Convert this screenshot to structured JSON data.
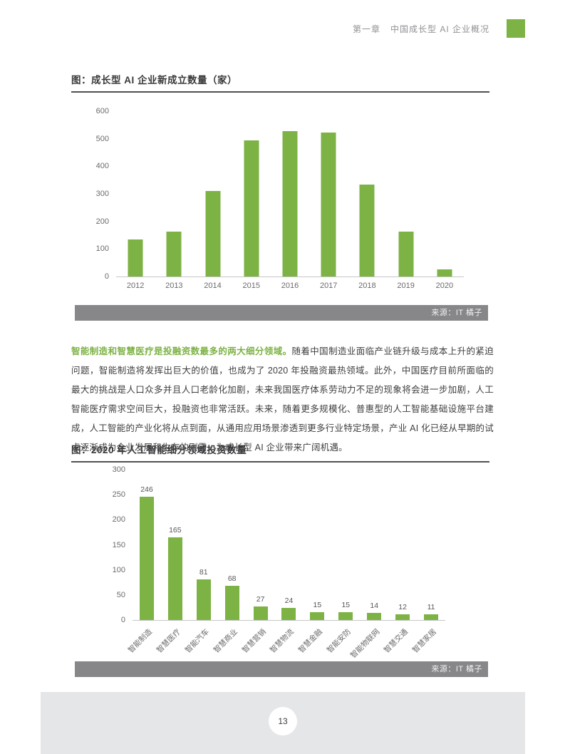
{
  "accent_color": "#7DB244",
  "header": {
    "chapter": "第一章",
    "title": "中国成长型 AI 企业概况"
  },
  "figure1": {
    "title": "图：成长型 AI 企业新成立数量（家）"
  },
  "figure2": {
    "title": "图：2020 年人工智能细分领域投资数量"
  },
  "source_bar": {
    "label": "来源：IT 橘子",
    "bg_color": "#87878A"
  },
  "paragraph": {
    "lead": "智能制造和智慧医疗是投融资数最多的两大细分领域。",
    "body": "随着中国制造业面临产业链升级与成本上升的紧迫问题，智能制造将发挥出巨大的价值，也成为了 2020 年投融资最热领域。此外，中国医疗目前所面临的最大的挑战是人口众多并且人口老龄化加剧，未来我国医疗体系劳动力不足的现象将会进一步加剧，人工智能医疗需求空间巨大，投融资也非常活跃。未来，随着更多规模化、普惠型的人工智能基础设施平台建成，人工智能的产业化将从点到面，从通用应用场景渗透到更多行业特定场景，产业 AI 化已经从早期的试点逐渐成为企业发展和生存的刚需，为成长型 AI 企业带来广阔机遇。"
  },
  "footer": {
    "page_number": "13"
  },
  "chart_data": [
    {
      "type": "bar",
      "title": "图：成长型 AI 企业新成立数量（家）",
      "categories": [
        "2012",
        "2013",
        "2014",
        "2015",
        "2016",
        "2017",
        "2018",
        "2019",
        "2020"
      ],
      "values": [
        135,
        162,
        310,
        494,
        528,
        522,
        333,
        163,
        26
      ],
      "xlabel": "",
      "ylabel": "",
      "ylim": [
        0,
        600
      ],
      "ytick_step": 100,
      "grid": false,
      "legend": false,
      "bar_color": "#7DB244",
      "show_value_labels": false
    },
    {
      "type": "bar",
      "title": "图：2020 年人工智能细分领域投资数量",
      "categories": [
        "智能制造",
        "智慧医疗",
        "智能汽车",
        "智慧商业",
        "智慧营销",
        "智慧物流",
        "智慧金融",
        "智能安防",
        "智能物联网",
        "智慧交通",
        "智慧家居"
      ],
      "values": [
        246,
        165,
        81,
        68,
        27,
        24,
        15,
        15,
        14,
        12,
        11
      ],
      "xlabel": "",
      "ylabel": "",
      "ylim": [
        0,
        300
      ],
      "ytick_step": 50,
      "grid": false,
      "legend": false,
      "bar_color": "#7DB244",
      "show_value_labels": true,
      "xtick_rotation": 45
    }
  ]
}
